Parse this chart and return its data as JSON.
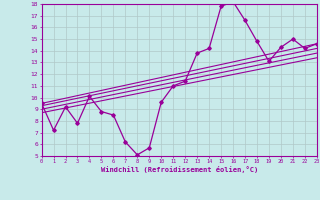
{
  "xlabel": "Windchill (Refroidissement éolien,°C)",
  "xlim": [
    0,
    23
  ],
  "ylim": [
    5,
    18
  ],
  "xtick_labels": [
    "0",
    "1",
    "2",
    "3",
    "4",
    "5",
    "6",
    "7",
    "8",
    "9",
    "10",
    "11",
    "12",
    "13",
    "14",
    "15",
    "16",
    "17",
    "18",
    "19",
    "20",
    "21",
    "22",
    "23"
  ],
  "ytick_labels": [
    "5",
    "6",
    "7",
    "8",
    "9",
    "10",
    "11",
    "12",
    "13",
    "14",
    "15",
    "16",
    "17",
    "18"
  ],
  "bg_color": "#c8eaea",
  "grid_color": "#b0c8c8",
  "line_color": "#990099",
  "line1_x": [
    0,
    1,
    2,
    3,
    4,
    5,
    6,
    7,
    8,
    9,
    10,
    11,
    12,
    13,
    14,
    15,
    16,
    17,
    18,
    19,
    20,
    21,
    22,
    23
  ],
  "line1_y": [
    9.5,
    7.2,
    9.2,
    7.8,
    10.1,
    8.8,
    8.5,
    6.2,
    5.1,
    5.7,
    9.6,
    11.0,
    11.4,
    13.8,
    14.2,
    17.8,
    18.2,
    16.6,
    14.8,
    13.1,
    14.3,
    15.0,
    14.2,
    14.6
  ],
  "line2_x": [
    0,
    23
  ],
  "line2_y": [
    9.5,
    14.6
  ],
  "line3_x": [
    0,
    23
  ],
  "line3_y": [
    9.3,
    14.2
  ],
  "line4_x": [
    0,
    23
  ],
  "line4_y": [
    9.0,
    13.8
  ],
  "line5_x": [
    0,
    23
  ],
  "line5_y": [
    8.7,
    13.4
  ]
}
